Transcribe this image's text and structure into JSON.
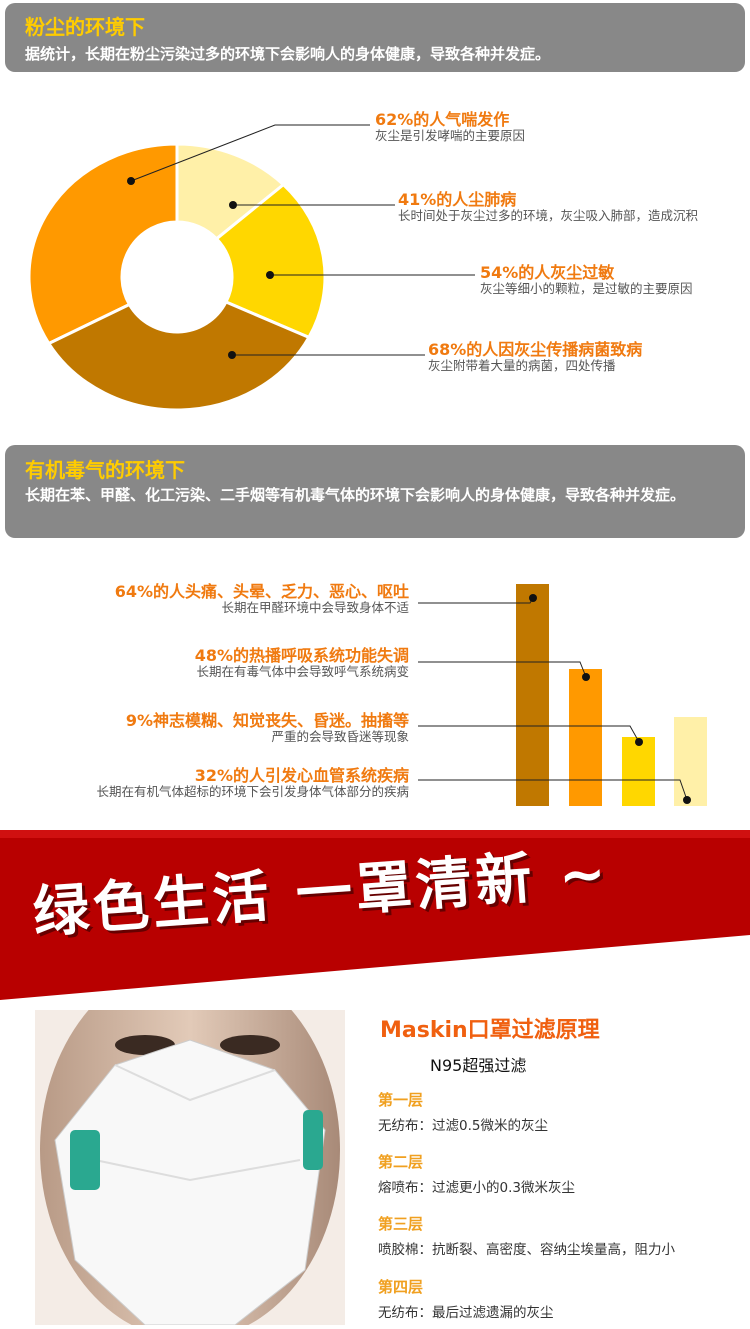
{
  "dust_section": {
    "title": "粉尘的环境下",
    "body": "据统计，长期在粉尘污染过多的环境下会影响人的身体健康，导致各种并发症。"
  },
  "gas_section": {
    "title": "有机毒气的环境下",
    "body": "长期在苯、甲醛、化工污染、二手烟等有机毒气体的环境下会影响人的身体健康，导致各种并发症。"
  },
  "chart_data": [
    {
      "type": "pie",
      "style": "donut",
      "items": [
        {
          "title": "62%的人气喘发作",
          "desc": "灰尘是引发哮喘的主要原因",
          "value": 62,
          "color": "#ff9900"
        },
        {
          "title": "41%的人尘肺病",
          "desc": "长时间处于灰尘过多的环境，灰尘吸入肺部，造成沉积",
          "value": 41,
          "color": "#fff0a8"
        },
        {
          "title": "54%的人灰尘过敏",
          "desc": "灰尘等细小的颗粒，是过敏的主要原因",
          "value": 54,
          "color": "#ffd700"
        },
        {
          "title": "68%的人因灰尘传播病菌致病",
          "desc": "灰尘附带着大量的病菌，四处传播",
          "value": 68,
          "color": "#c07800"
        }
      ]
    },
    {
      "type": "bar",
      "items": [
        {
          "title": "64%的人头痛、头晕、乏力、恶心、呕吐",
          "desc": "长期在甲醛环境中会导致身体不适",
          "value": 64,
          "color": "#c07800"
        },
        {
          "title": "48%的热播呼吸系统功能失调",
          "desc": "长期在有毒气体中会导致呼气系统病变",
          "value": 48,
          "color": "#ff9900"
        },
        {
          "title": "9%神志模糊、知觉丧失、昏迷。抽搐等",
          "desc": "严重的会导致昏迷等现象",
          "value": 9,
          "color": "#ffd700"
        },
        {
          "title": "32%的人引发心血管系统疾病",
          "desc": "长期在有机气体超标的环境下会引发身体气体部分的疾病",
          "value": 32,
          "color": "#fff0a8"
        }
      ]
    }
  ],
  "banner": {
    "slogan": "绿色生活 一罩清新 ~",
    "bg": "#b80000"
  },
  "filter": {
    "title": "Maskin口罩过滤原理",
    "subtitle": "N95超强过滤",
    "layers": [
      {
        "name": "第一层",
        "desc": "无纺布：过滤0.5微米的灰尘"
      },
      {
        "name": "第二层",
        "desc": "熔喷布：过滤更小的0.3微米灰尘"
      },
      {
        "name": "第三层",
        "desc": "喷胶棉：抗断裂、高密度、容纳尘埃量高，阻力小"
      },
      {
        "name": "第四层",
        "desc": "无纺布：最后过滤遗漏的灰尘"
      }
    ]
  }
}
